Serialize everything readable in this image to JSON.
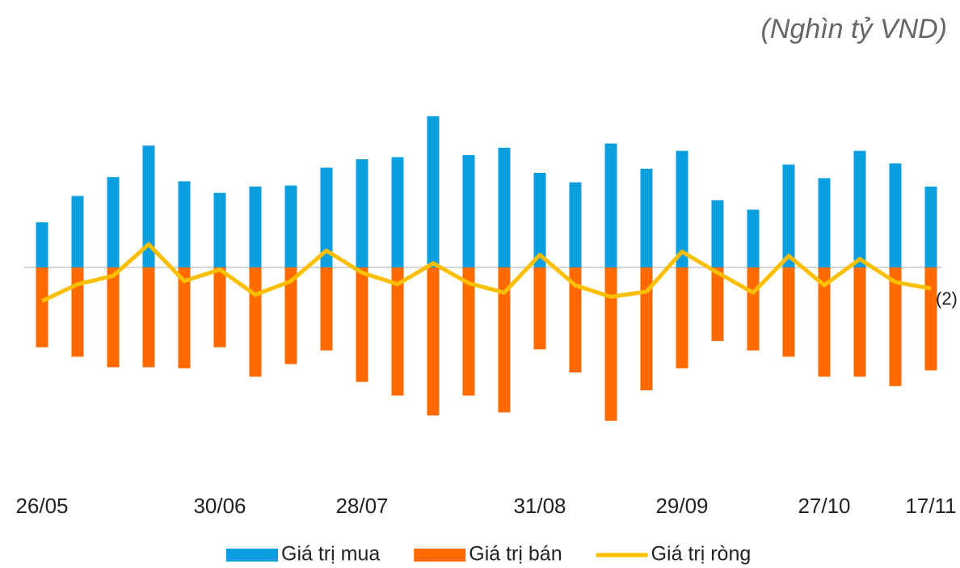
{
  "chart_data": {
    "type": "bar_line",
    "unit": "(Nghìn tỷ VND)",
    "categories": [
      "26/05",
      null,
      null,
      null,
      null,
      "30/06",
      null,
      null,
      null,
      "28/07",
      null,
      null,
      null,
      null,
      "31/08",
      null,
      null,
      null,
      "29/09",
      null,
      null,
      null,
      "27/10",
      null,
      null,
      "17/11"
    ],
    "series": [
      {
        "name": "Giá trị mua",
        "color": "#0c9fe0",
        "kind": "bar",
        "values": [
          4.3,
          6.8,
          8.6,
          11.6,
          8.2,
          7.1,
          7.7,
          7.8,
          9.5,
          10.3,
          10.5,
          14.4,
          10.7,
          11.4,
          9.0,
          8.1,
          11.8,
          9.4,
          11.1,
          6.4,
          5.5,
          9.8,
          8.5,
          11.1,
          9.9,
          7.7
        ]
      },
      {
        "name": "Giá trị bán",
        "color": "#ff6a00",
        "kind": "bar",
        "values": [
          -7.6,
          -8.5,
          -9.5,
          -9.5,
          -9.6,
          -7.6,
          -10.4,
          -9.2,
          -7.9,
          -10.9,
          -12.2,
          -14.1,
          -12.2,
          -13.8,
          -7.8,
          -10.0,
          -14.6,
          -11.7,
          -9.6,
          -7.0,
          -7.9,
          -8.5,
          -10.4,
          -10.4,
          -11.3,
          -9.8
        ]
      },
      {
        "name": "Giá trị ròng",
        "color": "#fbbf00",
        "kind": "line",
        "values": [
          -3.2,
          -1.6,
          -0.8,
          2.2,
          -1.3,
          -0.2,
          -2.6,
          -1.3,
          1.6,
          -0.5,
          -1.6,
          0.4,
          -1.5,
          -2.4,
          1.2,
          -1.7,
          -2.8,
          -2.3,
          1.5,
          -0.5,
          -2.4,
          1.1,
          -1.7,
          0.8,
          -1.4,
          -2.0
        ],
        "value_labels": [
          null,
          null,
          null,
          null,
          null,
          null,
          null,
          null,
          null,
          null,
          null,
          null,
          null,
          null,
          null,
          null,
          null,
          null,
          null,
          null,
          null,
          null,
          null,
          null,
          null,
          "(2)"
        ]
      }
    ],
    "ylim": [
      -20,
      18
    ]
  }
}
